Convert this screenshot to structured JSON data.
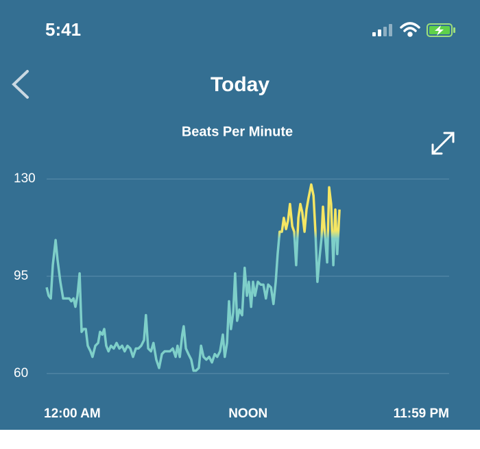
{
  "status_bar": {
    "time": "5:41"
  },
  "header": {
    "title": "Today"
  },
  "chart_data": {
    "type": "line",
    "title": "Beats Per Minute",
    "x": [
      0,
      7,
      15,
      22,
      32,
      39,
      49,
      59,
      71,
      81,
      88,
      96,
      103,
      110,
      118,
      125,
      132,
      140,
      147,
      157,
      164,
      174,
      184,
      191,
      199,
      206,
      213,
      221,
      230,
      240,
      250,
      260,
      270,
      279,
      289,
      299,
      309,
      319,
      328,
      338,
      348,
      355,
      363,
      373,
      382,
      392,
      402,
      412,
      422,
      431,
      441,
      451,
      461,
      468,
      476,
      485,
      490,
      498,
      507,
      517,
      525,
      534,
      544,
      552,
      561,
      571,
      581,
      591,
      601,
      610,
      620,
      630,
      637,
      645,
      652,
      659,
      667,
      674,
      681,
      689,
      699,
      708,
      716,
      723,
      731,
      738,
      745,
      755,
      765,
      775,
      784,
      792,
      802,
      811,
      819,
      826,
      833,
      841,
      848,
      856,
      863,
      870,
      878,
      885,
      892,
      900,
      907,
      914,
      922,
      929,
      936,
      946,
      954,
      961,
      968,
      976,
      983,
      988,
      995,
      1003,
      1010,
      1017,
      1025,
      1032,
      1039,
      1047
    ],
    "series": [
      {
        "name": "Heart rate",
        "color": "#7ecfc9",
        "highlight_color": "#f5e663",
        "highlight_above": 110,
        "values": [
          91,
          88,
          87,
          99,
          108,
          101,
          93,
          87,
          87,
          87,
          86,
          87,
          84,
          88,
          96,
          75,
          76,
          76,
          70,
          68,
          66,
          70,
          71,
          75,
          74,
          76,
          70,
          68,
          70,
          69,
          71,
          69,
          70,
          68,
          70,
          69,
          66,
          69,
          69,
          70,
          72,
          81,
          69,
          68,
          71,
          65,
          62,
          67,
          68,
          68,
          68,
          69,
          66,
          70,
          66,
          74,
          77,
          69,
          67,
          65,
          61,
          61,
          62,
          70,
          66,
          65,
          66,
          64,
          67,
          66,
          68,
          74,
          66,
          71,
          86,
          76,
          82,
          96,
          79,
          83,
          81,
          98,
          88,
          93,
          84,
          93,
          88,
          93,
          92,
          92,
          87,
          92,
          91,
          85,
          93,
          103,
          111,
          111,
          116,
          112,
          115,
          121,
          113,
          111,
          99,
          116,
          121,
          118,
          111,
          119,
          123,
          128,
          124,
          111,
          93,
          102,
          109,
          120,
          110,
          100,
          127,
          121,
          99,
          119,
          103,
          119
        ]
      }
    ],
    "xlim": [
      0,
      1439
    ],
    "xticks": [
      {
        "value": 0,
        "label": "12:00 AM"
      },
      {
        "value": 720,
        "label": "NOON"
      },
      {
        "value": 1439,
        "label": "11:59 PM"
      }
    ],
    "ylim": [
      58,
      132
    ],
    "yticks": [
      60,
      95,
      130
    ],
    "grid": true
  }
}
